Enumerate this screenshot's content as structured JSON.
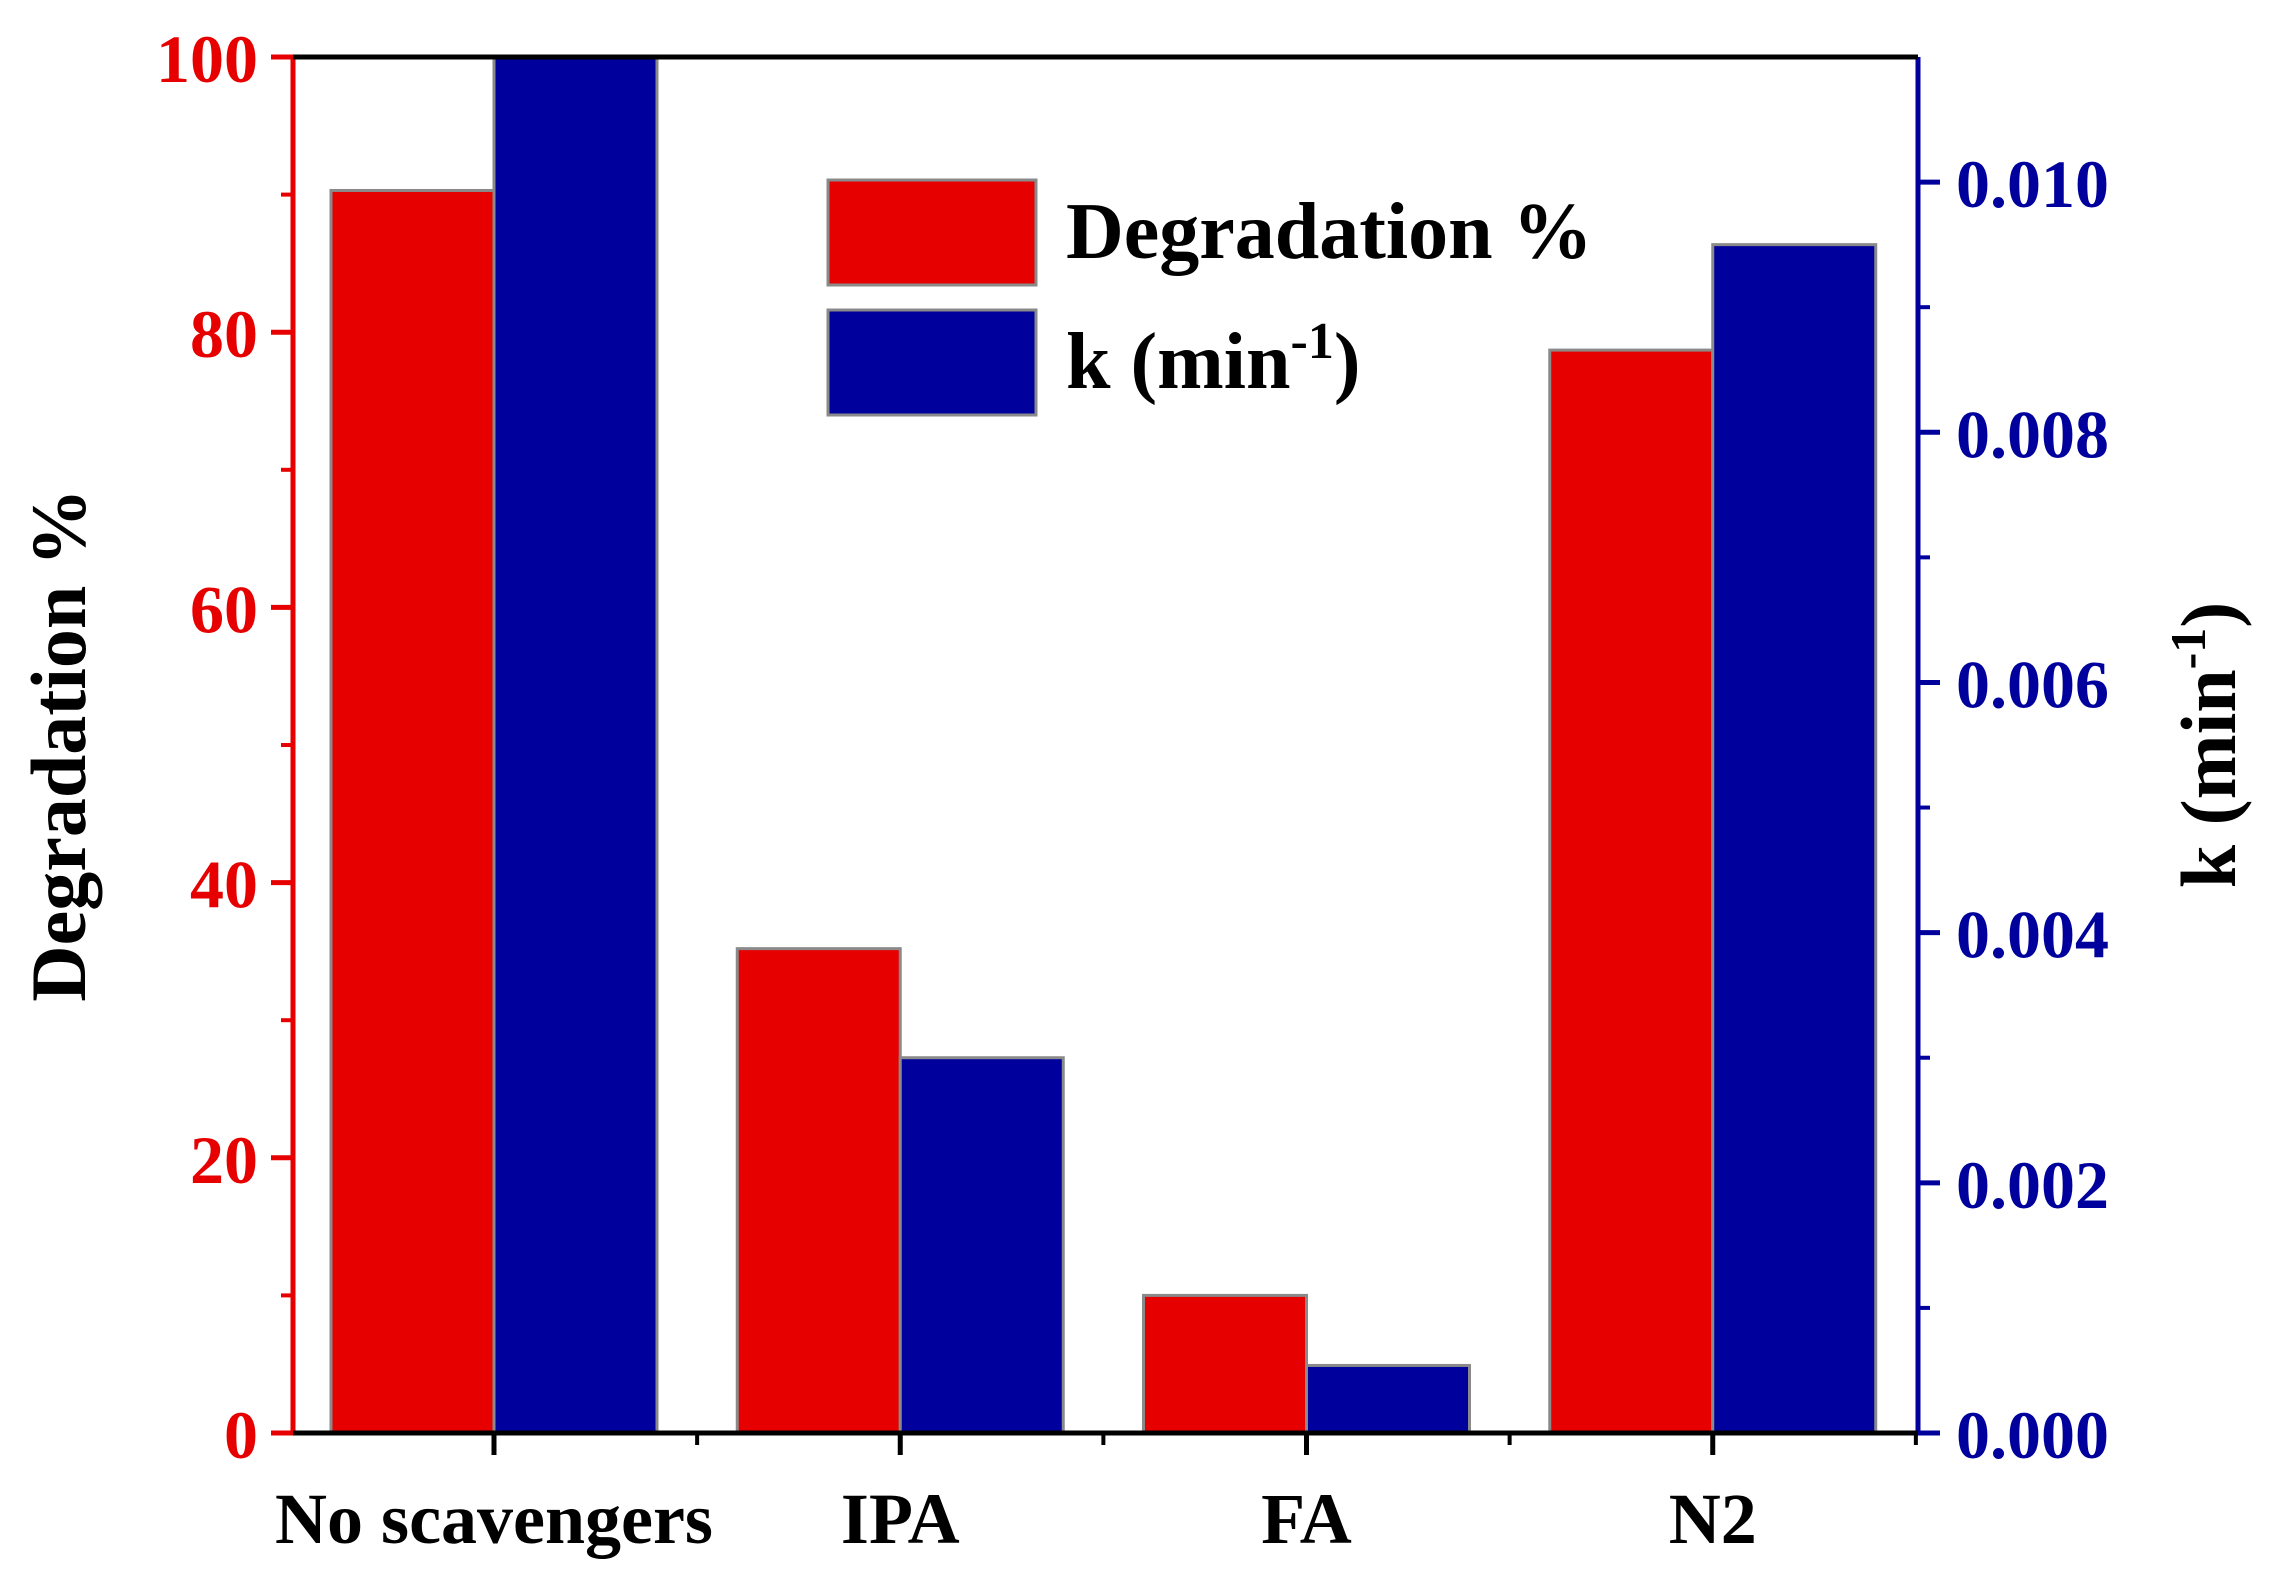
{
  "chart_data": {
    "type": "bar",
    "categories": [
      "No scavengers",
      "IPA",
      "FA",
      "N2"
    ],
    "series": [
      {
        "name": "Degradation %",
        "axis": "left",
        "color": "#e60000",
        "values": [
          90.3,
          35.2,
          10.0,
          78.7
        ]
      },
      {
        "name": "k",
        "axis": "right",
        "color": "#00009c",
        "values": [
          0.0112,
          0.003,
          0.00054,
          0.0095
        ]
      }
    ],
    "left_axis": {
      "label": "Degradation %",
      "color": "#e60000",
      "ylim": [
        0,
        100
      ],
      "ticks": [
        0,
        20,
        40,
        60,
        80,
        100
      ],
      "tick_labels": [
        "0",
        "20",
        "40",
        "60",
        "80",
        "100"
      ]
    },
    "right_axis": {
      "label_main": "k (min",
      "label_sup": "-1",
      "label_end": ")",
      "color": "#00009c",
      "ylim": [
        0,
        0.011
      ],
      "ticks": [
        0,
        0.002,
        0.004,
        0.006,
        0.008,
        0.01
      ],
      "tick_labels": [
        "0.000",
        "0.002",
        "0.004",
        "0.006",
        "0.008",
        "0.010"
      ]
    },
    "legend": {
      "placement": "top-center",
      "entries": [
        {
          "label": "Degradation %",
          "sup": "",
          "end": "",
          "color": "#e60000"
        },
        {
          "label": "k (min",
          "sup": "-1",
          "end": ")",
          "color": "#00009c"
        }
      ]
    },
    "title": "",
    "xlabel": "",
    "grid": false
  }
}
